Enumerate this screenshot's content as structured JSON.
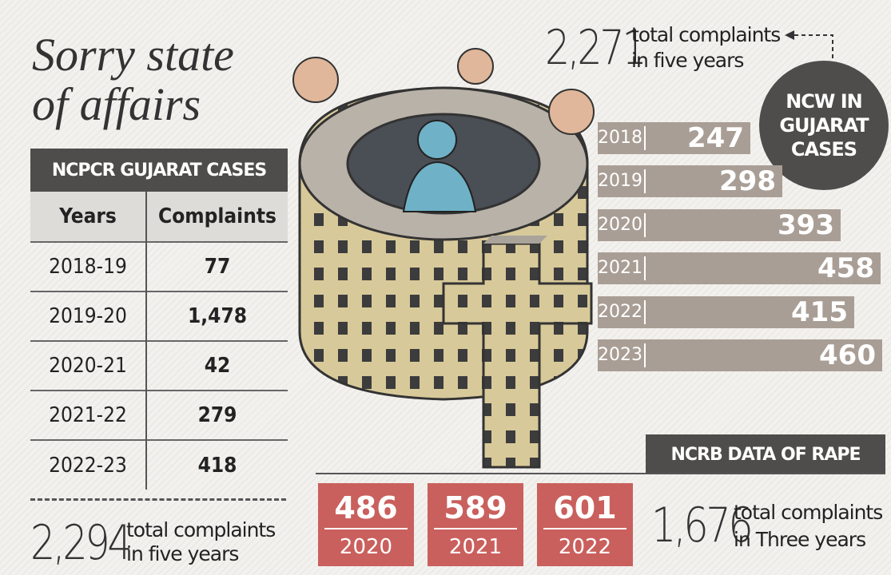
{
  "title": "Sorry state of affairs",
  "ncpcr": {
    "header": "NCPCR GUJARAT CASES",
    "col_years": "Years",
    "col_complaints": "Complaints",
    "rows": [
      {
        "year": "2018-19",
        "complaints": "77"
      },
      {
        "year": "2019-20",
        "complaints": "1,478"
      },
      {
        "year": "2020-21",
        "complaints": "42"
      },
      {
        "year": "2021-22",
        "complaints": "279"
      },
      {
        "year": "2022-23",
        "complaints": "418"
      }
    ],
    "total": "2,294",
    "total_label_1": "total complaints",
    "total_label_2": "in five years"
  },
  "ncw": {
    "label_line1": "NCW IN",
    "label_line2": "GUJARAT",
    "label_line3": "CASES",
    "total": "2,271",
    "total_label_1": "total complaints",
    "total_label_2": "in five years"
  },
  "ncrb": {
    "header": "NCRB DATA OF RAPE",
    "total": "1,676",
    "total_label_1": "total complaints",
    "total_label_2": "in Three years"
  },
  "chart_data": [
    {
      "type": "table",
      "title": "NCPCR GUJARAT CASES",
      "columns": [
        "Years",
        "Complaints"
      ],
      "rows": [
        [
          "2018-19",
          77
        ],
        [
          "2019-20",
          1478
        ],
        [
          "2020-21",
          42
        ],
        [
          "2021-22",
          279
        ],
        [
          "2022-23",
          418
        ]
      ]
    },
    {
      "type": "bar",
      "title": "NCW IN GUJARAT CASES",
      "orientation": "horizontal",
      "categories": [
        "2018",
        "2019",
        "2020",
        "2021",
        "2022",
        "2023"
      ],
      "values": [
        247,
        298,
        393,
        458,
        415,
        460
      ],
      "bar_color": "#a99e95"
    },
    {
      "type": "bar",
      "title": "NCRB DATA OF RAPE",
      "categories": [
        "2020",
        "2021",
        "2022"
      ],
      "values": [
        486,
        589,
        601
      ],
      "bar_color": "#c9605d"
    }
  ]
}
